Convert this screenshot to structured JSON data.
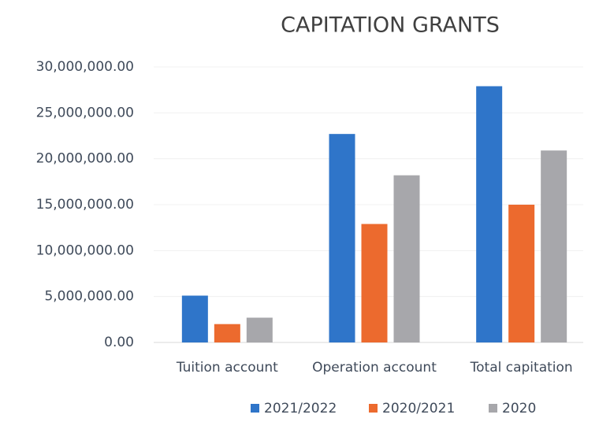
{
  "chart_data": {
    "type": "bar",
    "title": "CAPITATION GRANTS",
    "categories": [
      "Tuition account",
      "Operation account",
      "Total capitation"
    ],
    "series": [
      {
        "name": "2021/2022",
        "color": "#2f75c9",
        "values": [
          5100000,
          22700000,
          27900000
        ]
      },
      {
        "name": "2020/2021",
        "color": "#ec6a2e",
        "values": [
          2000000,
          12900000,
          15000000
        ]
      },
      {
        "name": "2020",
        "color": "#a7a7ab",
        "values": [
          2700000,
          18200000,
          20900000
        ]
      }
    ],
    "ylim": [
      0,
      30000000
    ],
    "yticks": [
      {
        "value": 0,
        "label": "0.00"
      },
      {
        "value": 5000000,
        "label": "5,000,000.00"
      },
      {
        "value": 10000000,
        "label": "10,000,000.00"
      },
      {
        "value": 15000000,
        "label": "15,000,000.00"
      },
      {
        "value": 20000000,
        "label": "20,000,000.00"
      },
      {
        "value": 25000000,
        "label": "25,000,000.00"
      },
      {
        "value": 30000000,
        "label": "30,000,000.00"
      }
    ],
    "grid": true,
    "legend": "bottom"
  }
}
